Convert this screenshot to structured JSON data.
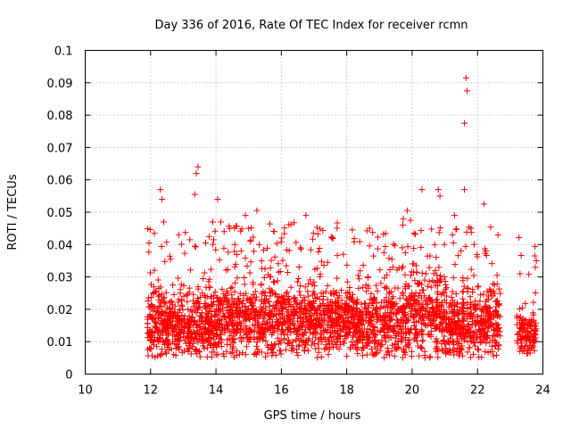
{
  "chart_data": {
    "type": "scatter",
    "title": "Day 336 of 2016, Rate Of TEC Index for receiver rcmn",
    "xlabel": "GPS time / hours",
    "ylabel": "ROTI / TECUs",
    "xlim": [
      10,
      24
    ],
    "ylim": [
      0,
      0.1
    ],
    "grid": true,
    "marker": "+",
    "x_ticks": [
      "10",
      "12",
      "14",
      "16",
      "18",
      "20",
      "22",
      "24"
    ],
    "y_ticks": [
      "0",
      "0.01",
      "0.02",
      "0.03",
      "0.04",
      "0.05",
      "0.06",
      "0.07",
      "0.08",
      "0.09",
      "0.1"
    ],
    "series": [
      {
        "name": "ROTI",
        "color": "#ff0000",
        "description": "Dense cloud of ROTI samples from ~11.9 h to ~22.7 h (mostly 0.008–0.03 TECU/min) and a separate cluster from ~23.2 h to ~23.8 h",
        "notable_points": [
          {
            "x": 11.95,
            "y": 0.0405
          },
          {
            "x": 12.3,
            "y": 0.057
          },
          {
            "x": 12.35,
            "y": 0.054
          },
          {
            "x": 12.4,
            "y": 0.047
          },
          {
            "x": 13.2,
            "y": 0.0415
          },
          {
            "x": 13.35,
            "y": 0.0555
          },
          {
            "x": 13.4,
            "y": 0.062
          },
          {
            "x": 13.45,
            "y": 0.064
          },
          {
            "x": 13.9,
            "y": 0.047
          },
          {
            "x": 14.05,
            "y": 0.054
          },
          {
            "x": 14.15,
            "y": 0.047
          },
          {
            "x": 14.25,
            "y": 0.044
          },
          {
            "x": 14.9,
            "y": 0.049
          },
          {
            "x": 15.25,
            "y": 0.0505
          },
          {
            "x": 15.0,
            "y": 0.045
          },
          {
            "x": 16.75,
            "y": 0.049
          },
          {
            "x": 18.7,
            "y": 0.045
          },
          {
            "x": 19.85,
            "y": 0.0505
          },
          {
            "x": 20.3,
            "y": 0.057
          },
          {
            "x": 20.8,
            "y": 0.057
          },
          {
            "x": 20.85,
            "y": 0.055
          },
          {
            "x": 21.3,
            "y": 0.049
          },
          {
            "x": 21.6,
            "y": 0.057
          },
          {
            "x": 21.65,
            "y": 0.0915
          },
          {
            "x": 21.68,
            "y": 0.0875
          },
          {
            "x": 21.6,
            "y": 0.0775
          },
          {
            "x": 21.8,
            "y": 0.045
          },
          {
            "x": 22.2,
            "y": 0.0525
          },
          {
            "x": 23.3,
            "y": 0.031
          },
          {
            "x": 23.75,
            "y": 0.0365
          },
          {
            "x": 23.8,
            "y": 0.035
          }
        ],
        "clusters": [
          {
            "x_range": [
              11.9,
              12.7
            ],
            "y_center": 0.016,
            "y_spread": 0.012,
            "density": 1.0
          },
          {
            "x_range": [
              12.7,
              14.0
            ],
            "y_center": 0.015,
            "y_spread": 0.012,
            "density": 1.0
          },
          {
            "x_range": [
              14.0,
              16.0
            ],
            "y_center": 0.017,
            "y_spread": 0.012,
            "density": 1.0
          },
          {
            "x_range": [
              16.0,
              18.0
            ],
            "y_center": 0.017,
            "y_spread": 0.011,
            "density": 1.0
          },
          {
            "x_range": [
              18.0,
              19.7
            ],
            "y_center": 0.016,
            "y_spread": 0.011,
            "density": 1.0
          },
          {
            "x_range": [
              19.7,
              21.0
            ],
            "y_center": 0.018,
            "y_spread": 0.013,
            "density": 1.0
          },
          {
            "x_range": [
              21.0,
              22.7
            ],
            "y_center": 0.016,
            "y_spread": 0.012,
            "density": 1.0
          },
          {
            "x_range": [
              23.2,
              23.8
            ],
            "y_center": 0.013,
            "y_spread": 0.008,
            "density": 0.8
          }
        ]
      }
    ]
  }
}
